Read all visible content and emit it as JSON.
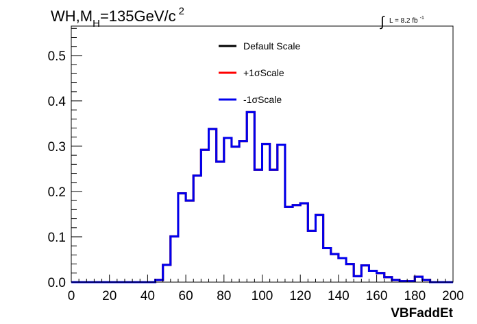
{
  "chart_data": {
    "type": "line",
    "style": "step-histogram",
    "title": {
      "main": "WH,M",
      "sub": "H",
      "rest": "=135GeV/c",
      "sup": "2"
    },
    "lumi": {
      "symbol": "∫",
      "text": "L = 8.2 fb",
      "sup": "-1"
    },
    "xlabel": "VBFaddEt",
    "ylabel": "",
    "xlim": [
      0,
      200
    ],
    "ylim": [
      0,
      0.565
    ],
    "x_ticks": [
      "0",
      "20",
      "40",
      "60",
      "80",
      "100",
      "120",
      "140",
      "160",
      "180",
      "200"
    ],
    "x_tick_values": [
      0,
      20,
      40,
      60,
      80,
      100,
      120,
      140,
      160,
      180,
      200
    ],
    "y_ticks": [
      "0.0",
      "0.1",
      "0.2",
      "0.3",
      "0.4",
      "0.5"
    ],
    "y_tick_values": [
      0,
      0.1,
      0.2,
      0.3,
      0.4,
      0.5
    ],
    "grid": false,
    "legend_placement": "top-center",
    "bin_width": 4,
    "x_bin_edges_start": 0,
    "series": [
      {
        "name": "Default Scale",
        "color": "#000000",
        "values": [
          0,
          0,
          0,
          0,
          0,
          0,
          0,
          0,
          0,
          0,
          0,
          0.005,
          0.038,
          0.101,
          0.196,
          0.18,
          0.235,
          0.292,
          0.338,
          0.266,
          0.318,
          0.299,
          0.311,
          0.375,
          0.248,
          0.305,
          0.248,
          0.303,
          0.166,
          0.17,
          0.174,
          0.113,
          0.148,
          0.075,
          0.062,
          0.053,
          0.04,
          0.013,
          0.037,
          0.025,
          0.02,
          0.011,
          0.005,
          0.002,
          0.002,
          0.012,
          0.005,
          0,
          0,
          0
        ]
      },
      {
        "name": "+1σScale",
        "color": "#ff0000",
        "values": [
          0,
          0,
          0,
          0,
          0,
          0,
          0,
          0,
          0,
          0,
          0,
          0.005,
          0.038,
          0.101,
          0.196,
          0.18,
          0.235,
          0.292,
          0.338,
          0.266,
          0.318,
          0.299,
          0.311,
          0.375,
          0.248,
          0.305,
          0.248,
          0.303,
          0.166,
          0.17,
          0.174,
          0.113,
          0.148,
          0.075,
          0.062,
          0.053,
          0.04,
          0.013,
          0.037,
          0.025,
          0.02,
          0.011,
          0.005,
          0.002,
          0.002,
          0.012,
          0.005,
          0,
          0,
          0
        ]
      },
      {
        "name": "-1σScale",
        "color": "#0000ee",
        "values": [
          0,
          0,
          0,
          0,
          0,
          0,
          0,
          0,
          0,
          0,
          0,
          0.005,
          0.038,
          0.101,
          0.196,
          0.18,
          0.235,
          0.292,
          0.338,
          0.266,
          0.318,
          0.299,
          0.311,
          0.375,
          0.248,
          0.305,
          0.248,
          0.303,
          0.166,
          0.17,
          0.174,
          0.113,
          0.148,
          0.075,
          0.062,
          0.053,
          0.04,
          0.013,
          0.037,
          0.025,
          0.02,
          0.011,
          0.005,
          0.002,
          0.002,
          0.012,
          0.005,
          0,
          0,
          0
        ]
      }
    ]
  }
}
